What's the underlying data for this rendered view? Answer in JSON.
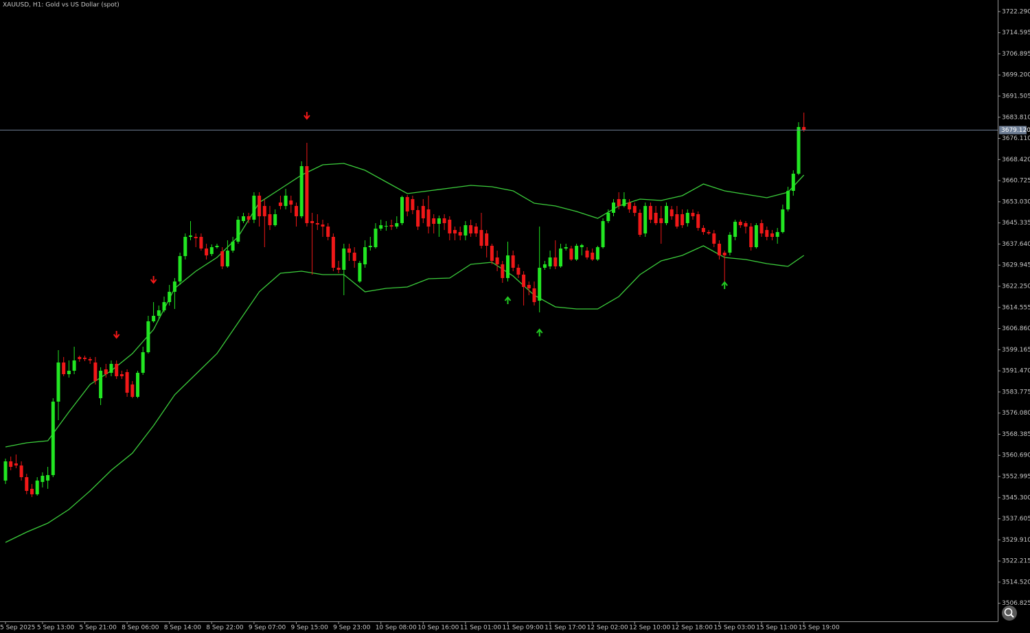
{
  "chart_data": {
    "type": "candlestick",
    "title": "XAUUSD, H1:  Gold vs US Dollar (spot)",
    "bull_color": "#22e622",
    "bear_color": "#f01818",
    "ylim": [
      3500.25,
      3726.5
    ],
    "yticks": [
      {
        "value": 3722.29,
        "label": "3722.290"
      },
      3714.595,
      3706.895,
      {
        "value": 3699.2,
        "label": "3699.200"
      },
      3691.505,
      {
        "value": 3683.81,
        "label": "3683.810"
      },
      {
        "value": 3676.11,
        "label": "3676.110"
      },
      {
        "value": 3668.42,
        "label": "3668.420"
      },
      3660.725,
      {
        "value": 3653.03,
        "label": "3653.030"
      },
      3645.335,
      {
        "value": 3637.64,
        "label": "3637.640"
      },
      3629.945,
      {
        "value": 3622.25,
        "label": "3622.250"
      },
      3614.555,
      {
        "value": 3606.86,
        "label": "3606.860"
      },
      3599.165,
      {
        "value": 3591.47,
        "label": "3591.470"
      },
      3583.775,
      {
        "value": 3576.08,
        "label": "3576.080"
      },
      3568.385,
      {
        "value": 3560.69,
        "label": "3560.690"
      },
      3552.995,
      {
        "value": 3545.3,
        "label": "3545.300"
      },
      3537.605,
      {
        "value": 3529.91,
        "label": "3529.910"
      },
      3522.215,
      {
        "value": 3514.52,
        "label": "3514.520"
      },
      3506.825
    ],
    "xticks": [
      {
        "value": 0,
        "label": "5 Sep 2025"
      },
      {
        "value": 7,
        "label": "5 Sep 13:00"
      },
      {
        "value": 15,
        "label": "5 Sep 21:00"
      },
      {
        "value": 23,
        "label": "8 Sep 06:00"
      },
      {
        "value": 31,
        "label": "8 Sep 14:00"
      },
      {
        "value": 39,
        "label": "8 Sep 22:00"
      },
      {
        "value": 47,
        "label": "9 Sep 07:00"
      },
      {
        "value": 55,
        "label": "9 Sep 15:00"
      },
      {
        "value": 63,
        "label": "9 Sep 23:00"
      },
      {
        "value": 71,
        "label": "10 Sep 08:00"
      },
      {
        "value": 79,
        "label": "10 Sep 16:00"
      },
      {
        "value": 87,
        "label": "11 Sep 01:00"
      },
      {
        "value": 95,
        "label": "11 Sep 09:00"
      },
      {
        "value": 103,
        "label": "11 Sep 17:00"
      },
      {
        "value": 111,
        "label": "12 Sep 02:00"
      },
      {
        "value": 119,
        "label": "12 Sep 10:00"
      },
      {
        "value": 127,
        "label": "12 Sep 18:00"
      },
      {
        "value": 135,
        "label": "15 Sep 03:00"
      },
      {
        "value": 143,
        "label": "15 Sep 11:00"
      },
      {
        "value": 151,
        "label": "15 Sep 19:00"
      }
    ],
    "current_price": {
      "value": 3679.12,
      "label": "3679.120",
      "color": "#6f7f96"
    },
    "ohlc": [
      [
        3551.5,
        3559.5,
        3550.25,
        3558.5
      ],
      [
        3558.5,
        3560.25,
        3555.25,
        3556.5
      ],
      [
        3557.75,
        3561,
        3556,
        3557
      ],
      [
        3557,
        3558.5,
        3551.5,
        3552.75
      ],
      [
        3552.75,
        3554,
        3546.5,
        3547.75
      ],
      [
        3548.5,
        3550.25,
        3545.5,
        3546.5
      ],
      [
        3546.5,
        3552.75,
        3546,
        3551.5
      ],
      [
        3551,
        3554.5,
        3549,
        3553.25
      ],
      [
        3551.5,
        3556.5,
        3548.5,
        3553.5
      ],
      [
        3553.5,
        3581.5,
        3552.75,
        3580.25
      ],
      [
        3580.25,
        3599,
        3573.5,
        3594.5
      ],
      [
        3594.5,
        3596.5,
        3589.5,
        3590.25
      ],
      [
        3590.25,
        3595.25,
        3589,
        3591.5
      ],
      [
        3591.5,
        3600.25,
        3590.25,
        3595.25
      ],
      [
        3596.5,
        3597,
        3594.75,
        3595.75
      ],
      [
        3596.25,
        3597,
        3595,
        3595.75
      ],
      [
        3595.75,
        3596.5,
        3594,
        3595.25
      ],
      [
        3594.5,
        3596.5,
        3586.5,
        3587.75
      ],
      [
        3581.5,
        3592.75,
        3579,
        3591.5
      ],
      [
        3592,
        3594,
        3589,
        3590.25
      ],
      [
        3590.75,
        3595.25,
        3589.5,
        3594
      ],
      [
        3594,
        3595.25,
        3588.5,
        3589.5
      ],
      [
        3590.25,
        3591.5,
        3588.5,
        3589.5
      ],
      [
        3591,
        3592,
        3582,
        3583.5
      ],
      [
        3586.5,
        3587.75,
        3581.5,
        3582
      ],
      [
        3582,
        3591.5,
        3581.5,
        3590.75
      ],
      [
        3590.75,
        3600.25,
        3590,
        3598.25
      ],
      [
        3598.25,
        3611.5,
        3597.75,
        3609.5
      ],
      [
        3609.5,
        3616.5,
        3609,
        3611.5
      ],
      [
        3611.5,
        3615.25,
        3610.25,
        3613.5
      ],
      [
        3613.5,
        3618.5,
        3612.75,
        3616.5
      ],
      [
        3616.5,
        3622.75,
        3615.25,
        3620.25
      ],
      [
        3620.25,
        3625.25,
        3614,
        3624
      ],
      [
        3624,
        3634.5,
        3622.75,
        3633.25
      ],
      [
        3633.25,
        3641.5,
        3632,
        3640.25
      ],
      [
        3640.25,
        3646,
        3639,
        3640.75
      ],
      [
        3640.25,
        3641.5,
        3636.5,
        3639.75
      ],
      [
        3640.25,
        3641.5,
        3635.25,
        3636
      ],
      [
        3636,
        3637.75,
        3632,
        3633.5
      ],
      [
        3634,
        3637.5,
        3633.25,
        3636.5
      ],
      [
        3636.5,
        3637.75,
        3636,
        3637
      ],
      [
        3635,
        3636.5,
        3628.5,
        3629.5
      ],
      [
        3629.5,
        3639,
        3629,
        3635.25
      ],
      [
        3635.25,
        3640.25,
        3634.5,
        3638.5
      ],
      [
        3638.5,
        3647.75,
        3637.75,
        3646.5
      ],
      [
        3646,
        3649,
        3645.25,
        3647.75
      ],
      [
        3647.75,
        3649,
        3645.25,
        3646.5
      ],
      [
        3646.5,
        3656.5,
        3645.25,
        3655.25
      ],
      [
        3655.25,
        3656.5,
        3644,
        3647.75
      ],
      [
        3651.5,
        3654,
        3636.5,
        3647.75
      ],
      [
        3648.5,
        3651.5,
        3642.75,
        3644.5
      ],
      [
        3644.5,
        3650.25,
        3644,
        3648.5
      ],
      [
        3652.75,
        3655.25,
        3650.25,
        3651.5
      ],
      [
        3651.5,
        3657.75,
        3650.25,
        3655.25
      ],
      [
        3653.5,
        3655.25,
        3649,
        3652
      ],
      [
        3651.5,
        3652.75,
        3644,
        3647.75
      ],
      [
        3647.75,
        3667.75,
        3647,
        3666
      ],
      [
        3666,
        3674.5,
        3644,
        3645.25
      ],
      [
        3646,
        3649,
        3626.5,
        3645.25
      ],
      [
        3645.25,
        3648.5,
        3642.75,
        3644.75
      ],
      [
        3644.75,
        3646.5,
        3640.25,
        3644
      ],
      [
        3644,
        3645.25,
        3639,
        3640.25
      ],
      [
        3640.25,
        3641.5,
        3627.75,
        3629
      ],
      [
        3629,
        3631.5,
        3627,
        3628.25
      ],
      [
        3628.25,
        3637.75,
        3619,
        3636
      ],
      [
        3636,
        3637.75,
        3631.5,
        3634.5
      ],
      [
        3634.5,
        3636.5,
        3629,
        3631.5
      ],
      [
        3624,
        3631.5,
        3623.5,
        3630.75
      ],
      [
        3630.25,
        3639,
        3629,
        3636.5
      ],
      [
        3636.5,
        3640.25,
        3635.25,
        3637
      ],
      [
        3636.5,
        3645.25,
        3636,
        3643.25
      ],
      [
        3643.25,
        3646.5,
        3642.5,
        3644.5
      ],
      [
        3644,
        3646,
        3642.5,
        3644.25
      ],
      [
        3644.5,
        3646.5,
        3642.75,
        3644
      ],
      [
        3644,
        3647.75,
        3643.25,
        3645.25
      ],
      [
        3645.25,
        3655.25,
        3644.5,
        3654.75
      ],
      [
        3654.75,
        3655.5,
        3647.75,
        3649.5
      ],
      [
        3654,
        3655.25,
        3648.5,
        3650
      ],
      [
        3650,
        3651.5,
        3642.75,
        3644
      ],
      [
        3651.5,
        3654,
        3645.25,
        3647
      ],
      [
        3650.25,
        3655.25,
        3641.5,
        3644
      ],
      [
        3647,
        3648.5,
        3641.5,
        3645
      ],
      [
        3645,
        3648,
        3640.25,
        3647
      ],
      [
        3647,
        3648.5,
        3642.75,
        3645.25
      ],
      [
        3646.5,
        3647.75,
        3639,
        3641.5
      ],
      [
        3642.75,
        3644,
        3639,
        3641.5
      ],
      [
        3642,
        3644,
        3639,
        3640.75
      ],
      [
        3640.75,
        3646,
        3639,
        3644.5
      ],
      [
        3644.5,
        3646.5,
        3640.25,
        3641.5
      ],
      [
        3644,
        3645.25,
        3640.25,
        3641.5
      ],
      [
        3642.75,
        3649,
        3636,
        3637
      ],
      [
        3641.5,
        3642.75,
        3632.75,
        3637
      ],
      [
        3637,
        3637.75,
        3630.25,
        3631.5
      ],
      [
        3632.75,
        3635.25,
        3627.75,
        3630.25
      ],
      [
        3630.25,
        3631.5,
        3623.5,
        3625.25
      ],
      [
        3625.25,
        3638.5,
        3624,
        3633.5
      ],
      [
        3633.5,
        3635.25,
        3627.75,
        3629
      ],
      [
        3629,
        3630.25,
        3625.25,
        3626.5
      ],
      [
        3626.5,
        3627.75,
        3615.25,
        3622
      ],
      [
        3622.75,
        3624,
        3619,
        3621.5
      ],
      [
        3621.5,
        3624,
        3615.25,
        3616.5
      ],
      [
        3617,
        3644,
        3612.75,
        3629
      ],
      [
        3629,
        3631.5,
        3628.25,
        3630.25
      ],
      [
        3629.5,
        3635.25,
        3628.5,
        3632.75
      ],
      [
        3632.75,
        3639,
        3628.5,
        3629.5
      ],
      [
        3629.5,
        3637.75,
        3629,
        3636
      ],
      [
        3636,
        3637.75,
        3635.25,
        3636.5
      ],
      [
        3636,
        3637,
        3631.5,
        3632
      ],
      [
        3632,
        3637.75,
        3631.5,
        3637
      ],
      [
        3636.5,
        3637.75,
        3633.5,
        3637.25
      ],
      [
        3635.25,
        3636.5,
        3632,
        3632.75
      ],
      [
        3634.5,
        3636,
        3631.5,
        3632
      ],
      [
        3632,
        3637,
        3631.5,
        3636.5
      ],
      [
        3636.5,
        3647,
        3636,
        3646
      ],
      [
        3646,
        3650.25,
        3645.25,
        3649
      ],
      [
        3649,
        3654,
        3647.75,
        3652.75
      ],
      [
        3654,
        3656.5,
        3650.25,
        3651.5
      ],
      [
        3651.5,
        3656.5,
        3651,
        3654
      ],
      [
        3652.75,
        3654,
        3649,
        3650.25
      ],
      [
        3651.5,
        3652.75,
        3647.75,
        3649
      ],
      [
        3649,
        3650.25,
        3640.25,
        3641
      ],
      [
        3641.5,
        3652.75,
        3640.25,
        3651.5
      ],
      [
        3651.5,
        3652.75,
        3645.25,
        3646.5
      ],
      [
        3649,
        3651.5,
        3644.5,
        3645.25
      ],
      [
        3647,
        3651.5,
        3637.75,
        3645.25
      ],
      [
        3645.25,
        3652.75,
        3644.5,
        3651.5
      ],
      [
        3650.25,
        3651.5,
        3646.5,
        3647.75
      ],
      [
        3648.5,
        3651.5,
        3643.25,
        3644
      ],
      [
        3648.5,
        3650.25,
        3643.5,
        3644.5
      ],
      [
        3645.25,
        3650.25,
        3644,
        3649
      ],
      [
        3649,
        3650.25,
        3646.5,
        3647.75
      ],
      [
        3648.5,
        3649.5,
        3642.5,
        3643.5
      ],
      [
        3643.5,
        3644.5,
        3641,
        3642
      ],
      [
        3642,
        3642.75,
        3641,
        3641.5
      ],
      [
        3641.5,
        3642.75,
        3636.5,
        3637.75
      ],
      [
        3637.75,
        3639,
        3632,
        3633.5
      ],
      [
        3634.5,
        3635.25,
        3624,
        3633.5
      ],
      [
        3634.5,
        3642,
        3633.5,
        3641
      ],
      [
        3640.25,
        3646.5,
        3639,
        3645.75
      ],
      [
        3645.75,
        3646.5,
        3643.5,
        3644.5
      ],
      [
        3645.25,
        3646,
        3641.5,
        3644
      ],
      [
        3644,
        3645.25,
        3635.25,
        3636.5
      ],
      [
        3636.5,
        3645.25,
        3636,
        3644.5
      ],
      [
        3645.25,
        3646.5,
        3640.25,
        3641.5
      ],
      [
        3642.75,
        3644,
        3639,
        3640.25
      ],
      [
        3641.5,
        3642.75,
        3639,
        3640.25
      ],
      [
        3640.25,
        3643.5,
        3637.75,
        3642
      ],
      [
        3642,
        3652,
        3641.5,
        3650.25
      ],
      [
        3650.25,
        3658.5,
        3649.5,
        3657
      ],
      [
        3657,
        3664.5,
        3655.25,
        3663.25
      ],
      [
        3663.25,
        3682,
        3662.75,
        3680.25
      ],
      [
        3680.25,
        3685.5,
        3678.5,
        3679.12
      ]
    ],
    "bands": {
      "color": "#3ccf3c",
      "x": [
        0,
        4,
        8,
        12,
        16,
        20,
        24,
        28,
        32,
        36,
        40,
        44,
        48,
        52,
        56,
        60,
        64,
        68,
        72,
        76,
        80,
        84,
        88,
        92,
        96,
        100,
        104,
        108,
        112,
        116,
        120,
        124,
        128,
        132,
        136,
        140,
        144,
        148,
        151
      ],
      "upper": [
        3563.75,
        3565.25,
        3566,
        3576.5,
        3586.5,
        3591.5,
        3597.75,
        3606.5,
        3621.5,
        3627.75,
        3632.75,
        3640.25,
        3652.75,
        3657.75,
        3662.75,
        3666.5,
        3667,
        3664.5,
        3660.25,
        3656,
        3657,
        3658,
        3659,
        3658.5,
        3657,
        3652.5,
        3651.5,
        3649.5,
        3647,
        3651.5,
        3654,
        3653.5,
        3655.25,
        3659.5,
        3657,
        3655.75,
        3654.5,
        3656.5,
        3662.75
      ],
      "lower": [
        3529,
        3532.75,
        3536,
        3541,
        3547.75,
        3555.25,
        3561.5,
        3571.5,
        3582.75,
        3590.25,
        3597.75,
        3609,
        3620.25,
        3627,
        3627.75,
        3626.5,
        3626.5,
        3620.25,
        3621.5,
        3622,
        3625,
        3625.25,
        3630.25,
        3631,
        3626,
        3619,
        3614.75,
        3614,
        3614,
        3618.5,
        3626.5,
        3631.5,
        3633.5,
        3637,
        3632.75,
        3632,
        3630.5,
        3629.5,
        3633.5
      ]
    },
    "sell_signals": {
      "color": "#f01818",
      "x": [
        21,
        28,
        57
      ],
      "values": [
        3604.75,
        3624.75,
        3684.5
      ]
    },
    "buy_signals": {
      "color": "#22c822",
      "x": [
        95,
        101,
        136
      ],
      "values": [
        3617,
        3605.25,
        3622.5
      ]
    }
  }
}
